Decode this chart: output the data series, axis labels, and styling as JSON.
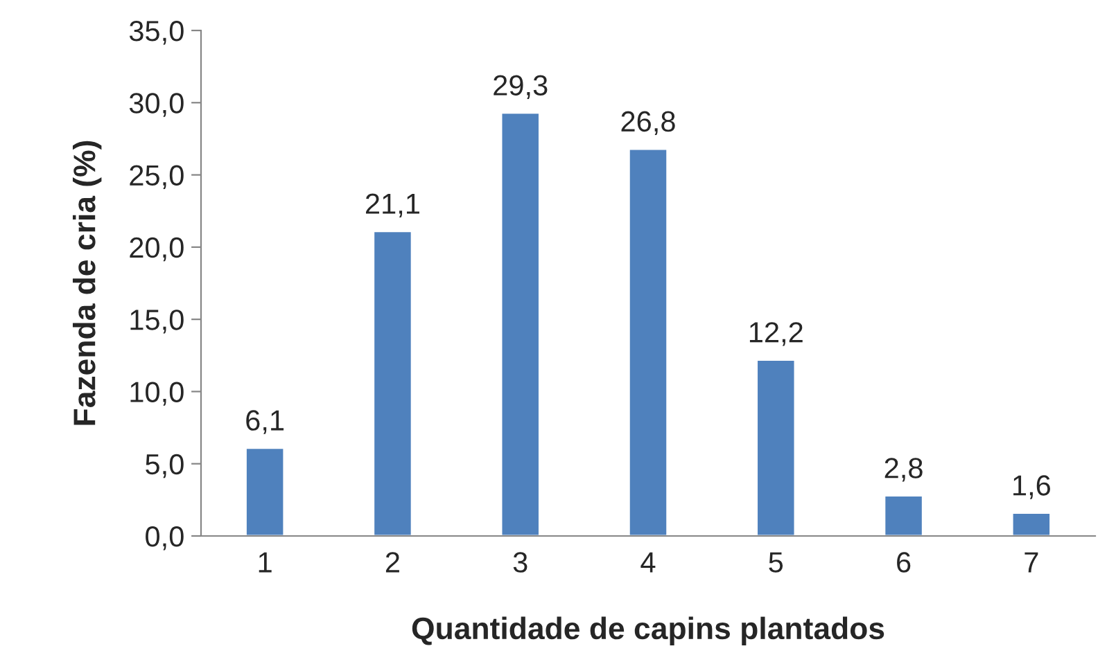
{
  "chart_data": {
    "type": "bar",
    "xlabel": "Quantidade de capins plantados",
    "ylabel": "Fazenda de cria (%)",
    "categories": [
      "1",
      "2",
      "3",
      "4",
      "5",
      "6",
      "7"
    ],
    "values": [
      6.1,
      21.1,
      29.3,
      26.8,
      12.2,
      2.8,
      1.6
    ],
    "value_labels": [
      "6,1",
      "21,1",
      "29,3",
      "26,8",
      "12,2",
      "2,8",
      "1,6"
    ],
    "color": "#4f81bd",
    "ylim": [
      0,
      35
    ],
    "yticks": [
      {
        "value": 0,
        "label": "0,0"
      },
      {
        "value": 5,
        "label": "5,0"
      },
      {
        "value": 10,
        "label": "10,0"
      },
      {
        "value": 15,
        "label": "15,0"
      },
      {
        "value": 20,
        "label": "20,0"
      },
      {
        "value": 25,
        "label": "25,0"
      },
      {
        "value": 30,
        "label": "30,0"
      },
      {
        "value": 35,
        "label": "35,0"
      }
    ],
    "grid": false,
    "legend": false
  }
}
